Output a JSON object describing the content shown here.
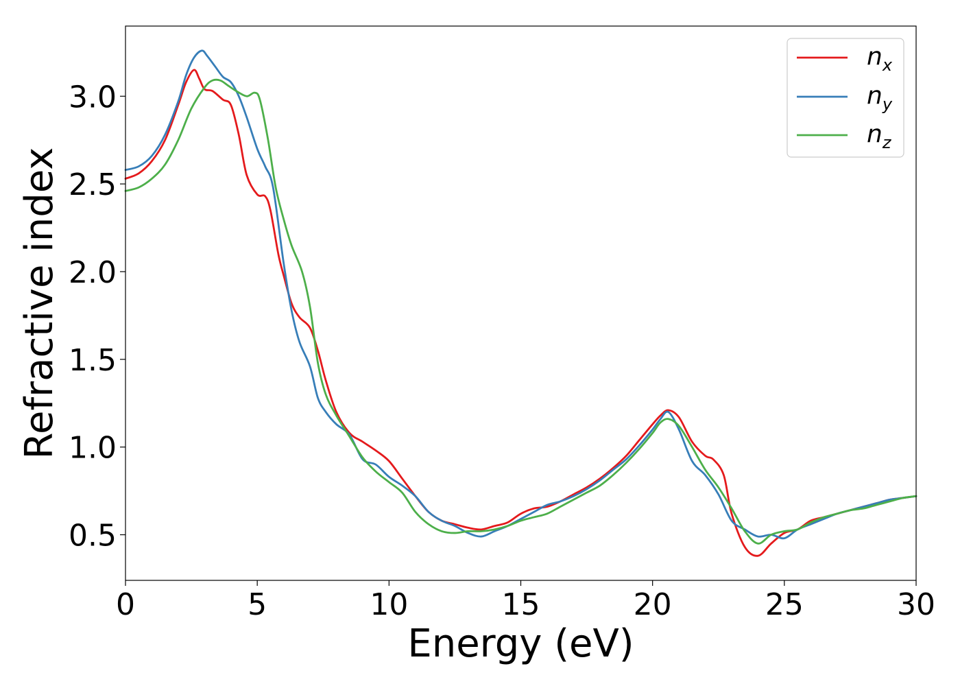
{
  "chart_data": {
    "type": "line",
    "xlabel": "Energy (eV)",
    "ylabel": "Refractive index",
    "xlim": [
      0,
      30
    ],
    "ylim": [
      0.24,
      3.4
    ],
    "xticks": [
      0,
      5,
      10,
      15,
      20,
      25,
      30
    ],
    "xtick_labels": [
      "0",
      "5",
      "10",
      "15",
      "20",
      "25",
      "30"
    ],
    "yticks": [
      0.5,
      1.0,
      1.5,
      2.0,
      2.5,
      3.0
    ],
    "ytick_labels": [
      "0.5",
      "1.0",
      "1.5",
      "2.0",
      "2.5",
      "3.0"
    ],
    "grid": false,
    "legend_position": "top-right",
    "series": [
      {
        "name": "n",
        "subscript": "x",
        "color": "#e41a1c",
        "x": [
          0,
          0.5,
          1.0,
          1.5,
          2.0,
          2.3,
          2.6,
          2.8,
          3.0,
          3.3,
          3.7,
          4.0,
          4.3,
          4.6,
          5.0,
          5.3,
          5.5,
          5.8,
          6.0,
          6.3,
          6.6,
          7.0,
          7.3,
          7.6,
          8.0,
          8.5,
          9.0,
          9.5,
          10.0,
          10.5,
          11.0,
          11.5,
          12.0,
          12.5,
          13.0,
          13.5,
          14.0,
          14.5,
          15.0,
          15.5,
          16.0,
          16.5,
          17.0,
          17.5,
          18.0,
          18.5,
          19.0,
          19.5,
          20.0,
          20.3,
          20.6,
          21.0,
          21.5,
          22.0,
          22.3,
          22.7,
          23.0,
          23.5,
          24.0,
          24.5,
          25.0,
          25.5,
          26.0,
          26.5,
          27.0,
          27.5,
          28.0,
          28.5,
          29.0,
          29.5,
          30.0
        ],
        "values": [
          2.53,
          2.56,
          2.63,
          2.75,
          2.95,
          3.08,
          3.15,
          3.1,
          3.04,
          3.03,
          2.98,
          2.95,
          2.78,
          2.55,
          2.44,
          2.43,
          2.35,
          2.1,
          1.98,
          1.82,
          1.74,
          1.68,
          1.55,
          1.38,
          1.2,
          1.08,
          1.03,
          0.98,
          0.92,
          0.82,
          0.72,
          0.63,
          0.58,
          0.56,
          0.54,
          0.53,
          0.55,
          0.57,
          0.62,
          0.65,
          0.66,
          0.69,
          0.73,
          0.77,
          0.82,
          0.88,
          0.95,
          1.04,
          1.13,
          1.18,
          1.21,
          1.17,
          1.03,
          0.95,
          0.93,
          0.84,
          0.62,
          0.43,
          0.38,
          0.45,
          0.51,
          0.53,
          0.58,
          0.6,
          0.62,
          0.64,
          0.66,
          0.68,
          0.7,
          0.71,
          0.72
        ]
      },
      {
        "name": "n",
        "subscript": "y",
        "color": "#377eb8",
        "x": [
          0,
          0.5,
          1.0,
          1.5,
          2.0,
          2.3,
          2.6,
          2.9,
          3.1,
          3.4,
          3.7,
          4.0,
          4.3,
          4.6,
          5.0,
          5.3,
          5.6,
          6.0,
          6.3,
          6.6,
          7.0,
          7.3,
          7.6,
          8.0,
          8.5,
          9.0,
          9.5,
          10.0,
          10.5,
          11.0,
          11.5,
          12.0,
          12.5,
          13.0,
          13.5,
          14.0,
          14.5,
          15.0,
          15.5,
          16.0,
          16.5,
          17.0,
          17.5,
          18.0,
          18.5,
          19.0,
          19.5,
          20.0,
          20.3,
          20.6,
          21.0,
          21.5,
          22.0,
          22.5,
          23.0,
          23.5,
          24.0,
          24.5,
          25.0,
          25.5,
          26.0,
          26.5,
          27.0,
          27.5,
          28.0,
          28.5,
          29.0,
          29.5,
          30.0
        ],
        "values": [
          2.58,
          2.6,
          2.66,
          2.78,
          2.97,
          3.12,
          3.22,
          3.26,
          3.23,
          3.17,
          3.11,
          3.08,
          3.0,
          2.88,
          2.7,
          2.6,
          2.48,
          2.05,
          1.78,
          1.6,
          1.46,
          1.28,
          1.2,
          1.13,
          1.07,
          0.93,
          0.9,
          0.83,
          0.78,
          0.72,
          0.63,
          0.58,
          0.55,
          0.51,
          0.49,
          0.52,
          0.55,
          0.59,
          0.63,
          0.67,
          0.69,
          0.72,
          0.76,
          0.81,
          0.87,
          0.93,
          1.01,
          1.1,
          1.16,
          1.2,
          1.1,
          0.92,
          0.84,
          0.73,
          0.58,
          0.53,
          0.49,
          0.5,
          0.48,
          0.53,
          0.56,
          0.59,
          0.62,
          0.64,
          0.66,
          0.68,
          0.7,
          0.71,
          0.72
        ]
      },
      {
        "name": "n",
        "subscript": "z",
        "color": "#4daf4a",
        "x": [
          0,
          0.5,
          1.0,
          1.5,
          2.0,
          2.5,
          3.0,
          3.3,
          3.6,
          3.9,
          4.2,
          4.6,
          4.9,
          5.1,
          5.4,
          5.7,
          6.0,
          6.3,
          6.7,
          7.0,
          7.3,
          7.6,
          8.0,
          8.5,
          9.0,
          9.5,
          10.0,
          10.5,
          11.0,
          11.5,
          12.0,
          12.5,
          13.0,
          13.5,
          14.0,
          14.5,
          15.0,
          15.5,
          16.0,
          16.5,
          17.0,
          17.5,
          18.0,
          18.5,
          19.0,
          19.5,
          20.0,
          20.3,
          20.6,
          21.0,
          21.5,
          22.0,
          22.5,
          23.0,
          23.5,
          24.0,
          24.5,
          25.0,
          25.5,
          26.0,
          26.5,
          27.0,
          27.5,
          28.0,
          28.5,
          29.0,
          29.5,
          30.0
        ],
        "values": [
          2.46,
          2.48,
          2.53,
          2.61,
          2.75,
          2.93,
          3.05,
          3.09,
          3.09,
          3.06,
          3.03,
          3.0,
          3.02,
          2.98,
          2.76,
          2.48,
          2.3,
          2.15,
          2.0,
          1.8,
          1.48,
          1.3,
          1.18,
          1.06,
          0.94,
          0.86,
          0.8,
          0.74,
          0.63,
          0.56,
          0.52,
          0.51,
          0.52,
          0.52,
          0.53,
          0.55,
          0.58,
          0.6,
          0.62,
          0.66,
          0.7,
          0.74,
          0.78,
          0.84,
          0.91,
          0.99,
          1.08,
          1.14,
          1.16,
          1.12,
          1.0,
          0.87,
          0.77,
          0.65,
          0.52,
          0.45,
          0.5,
          0.52,
          0.53,
          0.57,
          0.6,
          0.62,
          0.64,
          0.65,
          0.67,
          0.69,
          0.71,
          0.72
        ]
      }
    ]
  }
}
